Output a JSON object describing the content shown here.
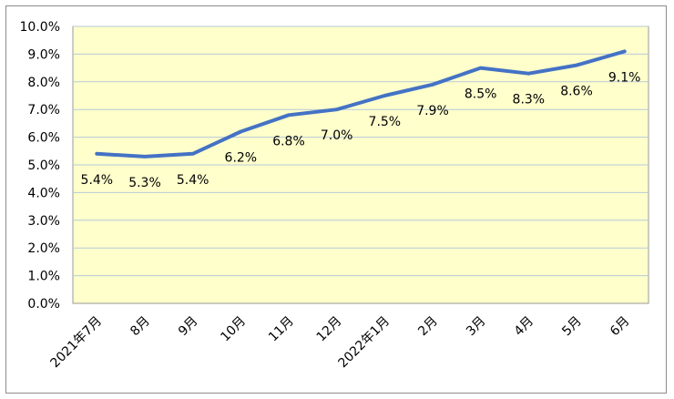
{
  "colors": {
    "plot_background": "#ffffcc",
    "plot_border": "#999999",
    "gridline": "#b7c9d9",
    "line": "#4472c4"
  },
  "chart_data": {
    "type": "line",
    "title": "",
    "xlabel": "",
    "ylabel": "",
    "categories": [
      "2021年7月",
      "8月",
      "9月",
      "10月",
      "11月",
      "12月",
      "2022年1月",
      "2月",
      "3月",
      "4月",
      "5月",
      "6月"
    ],
    "series": [
      {
        "values": [
          5.4,
          5.3,
          5.4,
          6.2,
          6.8,
          7.0,
          7.5,
          7.9,
          8.5,
          8.3,
          8.6,
          9.1
        ],
        "data_labels": [
          "5.4%",
          "5.3%",
          "5.4%",
          "6.2%",
          "6.8%",
          "7.0%",
          "7.5%",
          "7.9%",
          "8.5%",
          "8.3%",
          "8.6%",
          "9.1%"
        ]
      }
    ],
    "ylim": [
      0,
      10
    ],
    "yticks": [
      0,
      1,
      2,
      3,
      4,
      5,
      6,
      7,
      8,
      9,
      10
    ],
    "ytick_labels": [
      "0.0%",
      "1.0%",
      "2.0%",
      "3.0%",
      "4.0%",
      "5.0%",
      "6.0%",
      "7.0%",
      "8.0%",
      "9.0%",
      "10.0%"
    ],
    "grid": true,
    "legend": "none"
  }
}
